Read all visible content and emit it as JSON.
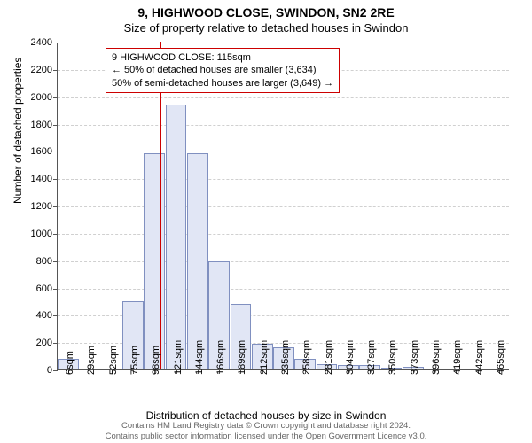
{
  "title": "9, HIGHWOOD CLOSE, SWINDON, SN2 2RE",
  "subtitle": "Size of property relative to detached houses in Swindon",
  "ylabel": "Number of detached properties",
  "xlabel": "Distribution of detached houses by size in Swindon",
  "chart": {
    "type": "histogram",
    "bar_fill": "#e1e6f5",
    "bar_stroke": "#8090c0",
    "grid_color": "#d0d0d0",
    "background": "#ffffff",
    "highlight_color": "#cc0000",
    "annotation_border": "#cc0000",
    "ylim": [
      0,
      2400
    ],
    "ytick_step": 200,
    "yticks": [
      0,
      200,
      400,
      600,
      800,
      1000,
      1200,
      1400,
      1600,
      1800,
      2000,
      2200,
      2400
    ],
    "xticks": [
      "6sqm",
      "29sqm",
      "52sqm",
      "75sqm",
      "98sqm",
      "121sqm",
      "144sqm",
      "166sqm",
      "189sqm",
      "212sqm",
      "235sqm",
      "258sqm",
      "281sqm",
      "304sqm",
      "327sqm",
      "350sqm",
      "373sqm",
      "396sqm",
      "419sqm",
      "442sqm",
      "465sqm"
    ],
    "bars": [
      80,
      0,
      0,
      500,
      1580,
      1940,
      1580,
      790,
      480,
      190,
      160,
      80,
      40,
      30,
      30,
      10,
      20,
      0,
      0,
      0,
      0
    ],
    "bar_width_ratio": 0.98,
    "highlight_x": 115,
    "x_min": 6,
    "x_max": 488,
    "annotation": {
      "line1": "9 HIGHWOOD CLOSE: 115sqm",
      "line2": "← 50% of detached houses are smaller (3,634)",
      "line3": "50% of semi-detached houses are larger (3,649) →"
    }
  },
  "footer": {
    "line1": "Contains HM Land Registry data © Crown copyright and database right 2024.",
    "line2": "Contains public sector information licensed under the Open Government Licence v3.0."
  }
}
